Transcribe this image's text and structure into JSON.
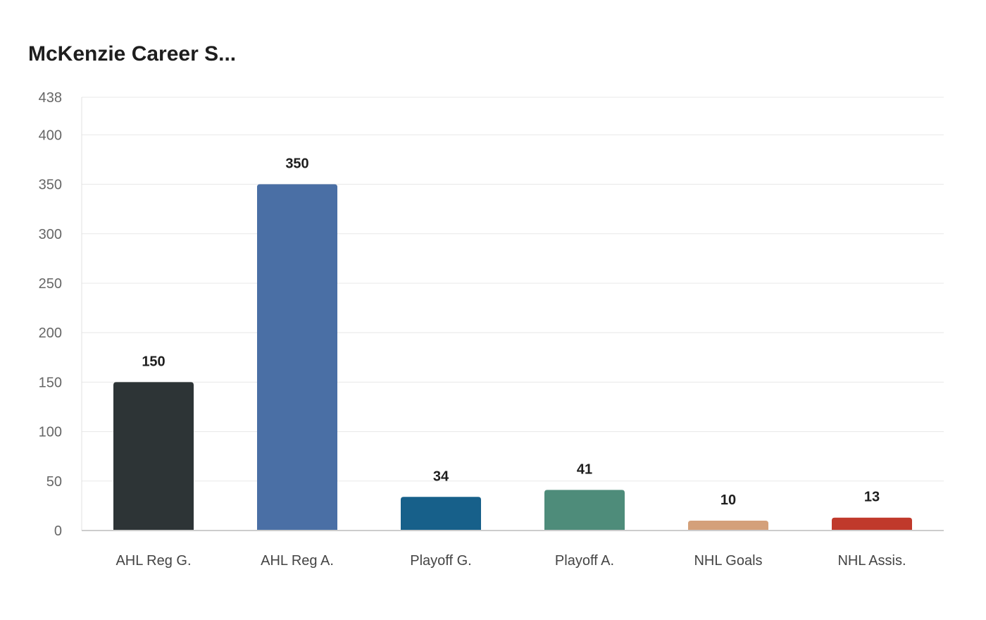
{
  "chart_data": {
    "type": "bar",
    "title": "McKenzie Career S...",
    "categories": [
      "AHL Reg G.",
      "AHL Reg A.",
      "Playoff G.",
      "Playoff A.",
      "NHL Goals",
      "NHL Assis."
    ],
    "values": [
      150,
      350,
      34,
      41,
      10,
      13
    ],
    "colors": [
      "#2d3436",
      "#4a6fa5",
      "#17608a",
      "#4e8c7a",
      "#d4a07a",
      "#c0392b"
    ],
    "xlabel": "",
    "ylabel": "",
    "ylim": [
      0,
      438
    ],
    "yticks": [
      0,
      50,
      100,
      150,
      200,
      250,
      300,
      350,
      400,
      438
    ],
    "grid": true,
    "data_labels": true
  }
}
